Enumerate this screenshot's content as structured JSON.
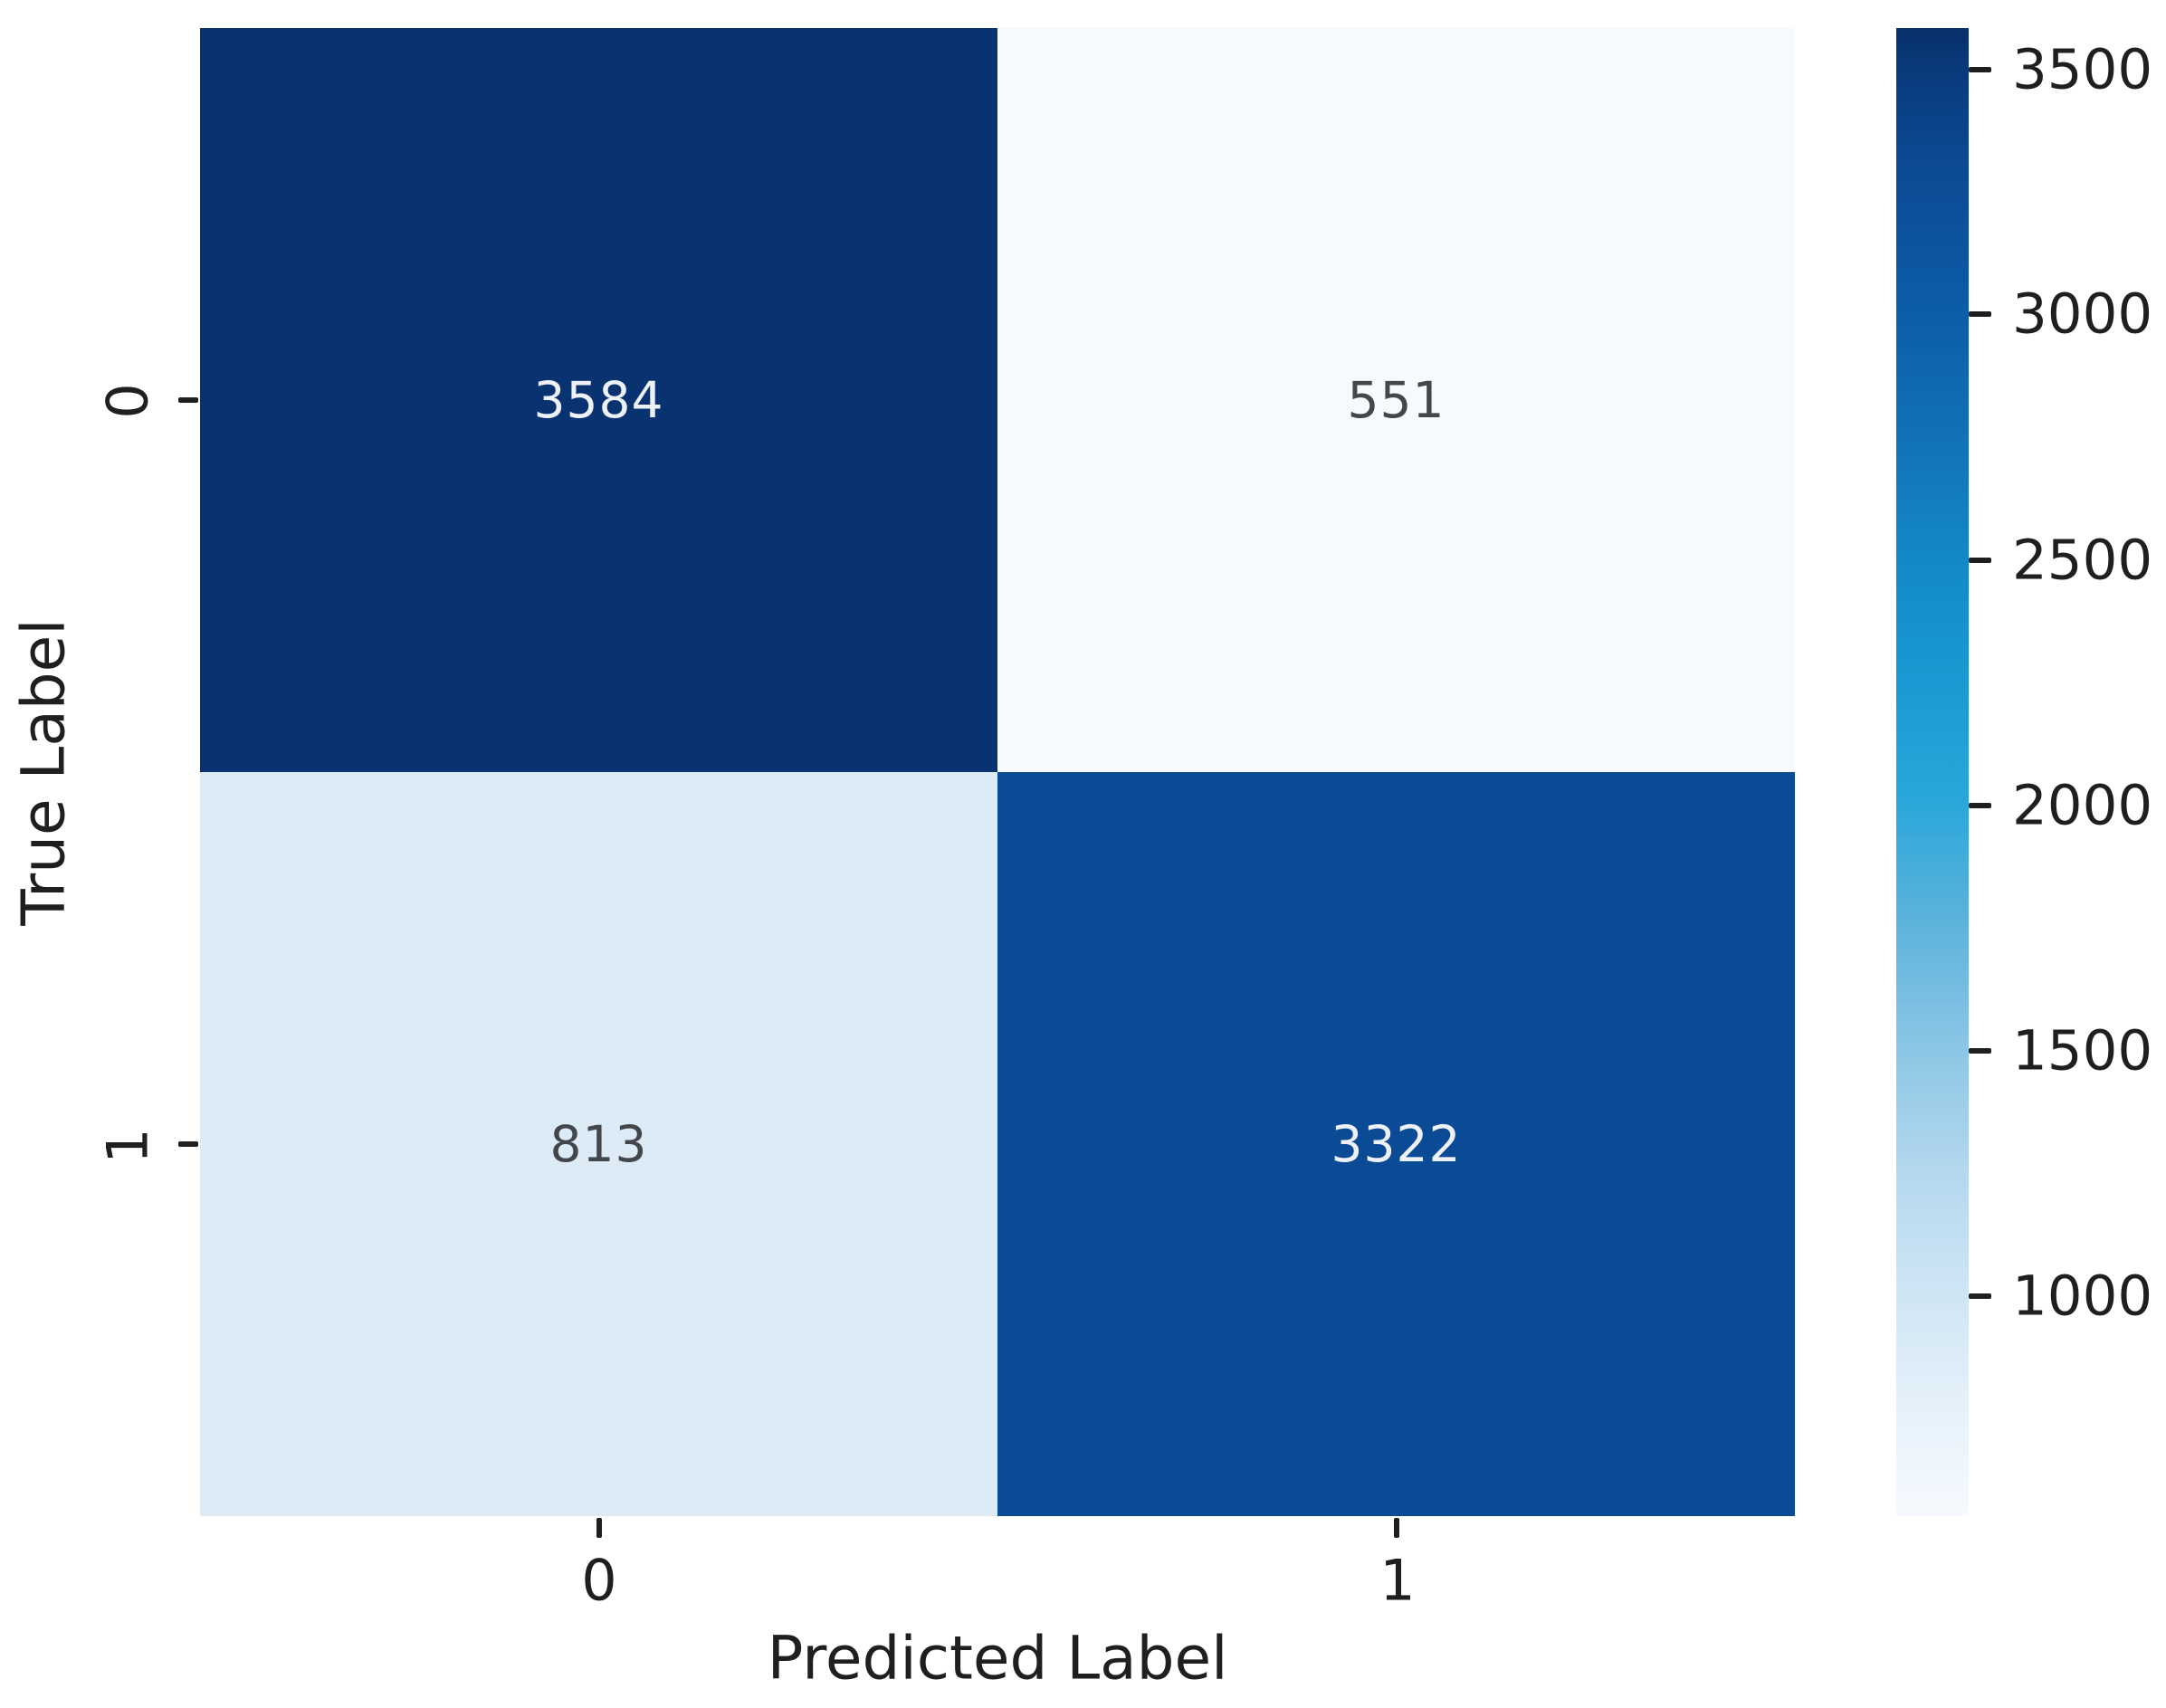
{
  "figure": {
    "background": "#ffffff",
    "axis_text_color": "#1f1f1f"
  },
  "chart_data": {
    "type": "heatmap",
    "subtype": "confusion-matrix",
    "title": "",
    "xlabel": "Predicted Label",
    "ylabel": "True Label",
    "x_tick_labels": [
      "0",
      "1"
    ],
    "y_tick_labels": [
      "0",
      "1"
    ],
    "matrix_rows": [
      {
        "true_label": "0",
        "values": [
          3584,
          551
        ]
      },
      {
        "true_label": "1",
        "values": [
          813,
          3322
        ]
      }
    ],
    "cells": [
      {
        "row": "0",
        "col": "0",
        "value": "3584",
        "bg": "#093271",
        "fg": "#eef2f8"
      },
      {
        "row": "0",
        "col": "1",
        "value": "551",
        "bg": "#f6fafe",
        "fg": "#43474c"
      },
      {
        "row": "1",
        "col": "0",
        "value": "813",
        "bg": "#dcebf5",
        "fg": "#43474c"
      },
      {
        "row": "1",
        "col": "1",
        "value": "3322",
        "bg": "#0b4b96",
        "fg": "#eef2f8"
      }
    ],
    "colormap": "Blues",
    "grid": false,
    "legend_position": "none",
    "colorbar": {
      "vmin": 551,
      "vmax": 3584,
      "tick_values": [
        3500,
        3000,
        2500,
        2000,
        1500,
        1000
      ],
      "gradient_stops": [
        {
          "pos": 0.0,
          "color": "#08306b"
        },
        {
          "pos": 0.03,
          "color": "#0a3a7c"
        },
        {
          "pos": 0.09,
          "color": "#0b4a92"
        },
        {
          "pos": 0.19,
          "color": "#0d5ca8"
        },
        {
          "pos": 0.28,
          "color": "#1173b8"
        },
        {
          "pos": 0.36,
          "color": "#1489c8"
        },
        {
          "pos": 0.45,
          "color": "#1a9cd3"
        },
        {
          "pos": 0.52,
          "color": "#2aa7d9"
        },
        {
          "pos": 0.6,
          "color": "#5cb3dc"
        },
        {
          "pos": 0.69,
          "color": "#8ec7e6"
        },
        {
          "pos": 0.77,
          "color": "#b4d8ee"
        },
        {
          "pos": 0.85,
          "color": "#cfe5f4"
        },
        {
          "pos": 0.94,
          "color": "#e9f3fb"
        },
        {
          "pos": 1.0,
          "color": "#f6fafe"
        }
      ]
    }
  }
}
